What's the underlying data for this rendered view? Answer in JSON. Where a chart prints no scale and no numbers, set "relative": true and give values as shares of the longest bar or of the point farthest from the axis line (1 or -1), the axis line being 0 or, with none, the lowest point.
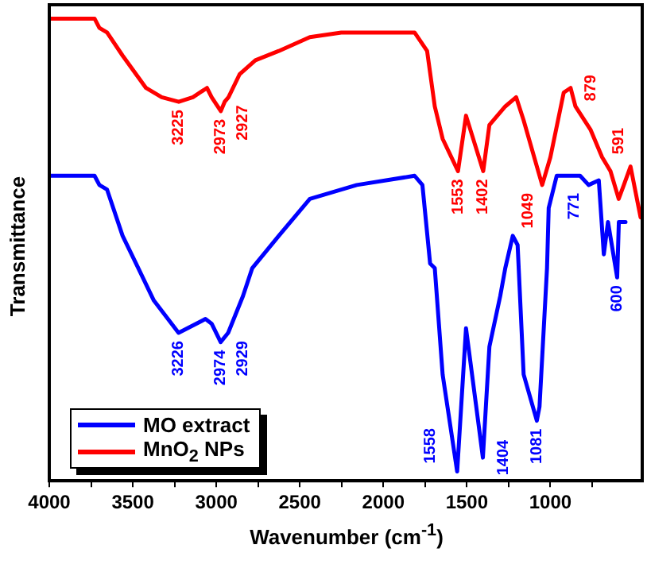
{
  "chart_data": {
    "type": "line",
    "xlabel": "Wavenumber (cm$^{-1}$)",
    "ylabel": "Transmittance",
    "relative": true,
    "xlim": [
      4000,
      450
    ],
    "xticks": [
      4000,
      {
        "value": 3750,
        "label": null
      },
      3500,
      {
        "value": 3250,
        "label": null
      },
      3000,
      {
        "value": 2750,
        "label": null
      },
      2500,
      {
        "value": 2250,
        "label": null
      },
      2000,
      {
        "value": 1750,
        "label": null
      },
      1500,
      {
        "value": 1250,
        "label": null
      },
      1000,
      {
        "value": 750,
        "label": null
      }
    ],
    "legend": "bottom left",
    "grid": false,
    "marker": "none",
    "line_style": "solid",
    "series": [
      {
        "name": "MO extract",
        "color": "#0000ff",
        "x": [
          4000,
          3729,
          3700,
          3654,
          3561,
          3467,
          3374,
          3226,
          3065,
          3028,
          2974,
          2929,
          2840,
          2785,
          2626,
          2440,
          2159,
          1813,
          1766,
          1720,
          1692,
          1645,
          1558,
          1505,
          1404,
          1365,
          1300,
          1270,
          1225,
          1196,
          1160,
          1081,
          1065,
          1020,
          1010,
          962,
          822,
          771,
          710,
          680,
          655,
          600,
          590,
          550
        ],
        "values": [
          0.66,
          0.66,
          0.64,
          0.63,
          0.53,
          0.46,
          0.39,
          0.32,
          0.35,
          0.34,
          0.3,
          0.32,
          0.4,
          0.46,
          0.53,
          0.61,
          0.64,
          0.66,
          0.64,
          0.47,
          0.46,
          0.23,
          0.02,
          0.33,
          0.05,
          0.29,
          0.4,
          0.46,
          0.53,
          0.51,
          0.23,
          0.13,
          0.16,
          0.46,
          0.59,
          0.66,
          0.66,
          0.64,
          0.65,
          0.49,
          0.56,
          0.44,
          0.56,
          0.56
        ]
      },
      {
        "name": "MnO$_{2}$ NPs",
        "color": "#ff0000",
        "x": [
          4000,
          3729,
          3700,
          3654,
          3561,
          3421,
          3327,
          3225,
          3140,
          3056,
          3028,
          2973,
          2950,
          2927,
          2860,
          2766,
          2626,
          2440,
          2252,
          1813,
          1738,
          1692,
          1645,
          1553,
          1505,
          1402,
          1365,
          1270,
          1205,
          1160,
          1049,
          1000,
          920,
          879,
          850,
          760,
          690,
          640,
          591,
          560,
          520,
          460
        ],
        "values": [
          1.0,
          1.0,
          0.98,
          0.97,
          0.92,
          0.85,
          0.83,
          0.82,
          0.83,
          0.85,
          0.83,
          0.8,
          0.82,
          0.83,
          0.88,
          0.91,
          0.93,
          0.96,
          0.97,
          0.97,
          0.93,
          0.81,
          0.74,
          0.67,
          0.79,
          0.67,
          0.77,
          0.81,
          0.83,
          0.78,
          0.64,
          0.7,
          0.84,
          0.85,
          0.81,
          0.76,
          0.7,
          0.67,
          0.61,
          0.64,
          0.68,
          0.57
        ]
      }
    ],
    "annotations": [
      {
        "text": "3225",
        "x": 3225,
        "y": 0.82
      },
      {
        "text": "2973",
        "x": 2973,
        "y": 0.8
      },
      {
        "text": "2927",
        "x": 2927,
        "y": 0.83
      },
      {
        "text": "1553",
        "x": 1553,
        "y": 0.67
      },
      {
        "text": "1402",
        "x": 1402,
        "y": 0.67
      },
      {
        "text": "1049",
        "x": 1049,
        "y": 0.64
      },
      {
        "text": "879",
        "x": 879,
        "y": 0.85
      },
      {
        "text": "591",
        "x": 591,
        "y": 0.61
      },
      {
        "text": "3226",
        "x": 3226,
        "y": 0.32
      },
      {
        "text": "2974",
        "x": 2974,
        "y": 0.3
      },
      {
        "text": "2929",
        "x": 2929,
        "y": 0.32
      },
      {
        "text": "1558",
        "x": 1558,
        "y": 0.02
      },
      {
        "text": "1404",
        "x": 1404,
        "y": 0.05
      },
      {
        "text": "1081",
        "x": 1081,
        "y": 0.13
      },
      {
        "text": "771",
        "x": 771,
        "y": 0.64
      },
      {
        "text": "600",
        "x": 600,
        "y": 0.44
      }
    ]
  }
}
